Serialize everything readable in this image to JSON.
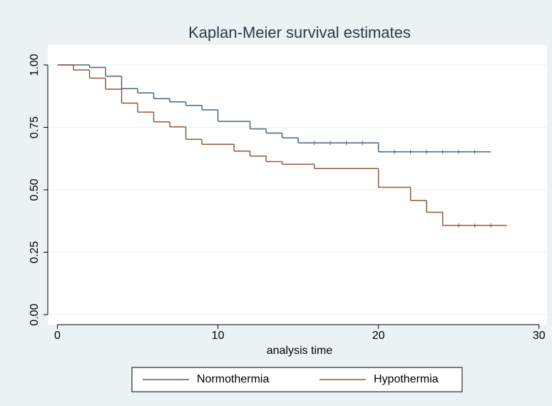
{
  "chart_data": {
    "type": "step",
    "title": "Kaplan-Meier survival estimates",
    "x_label": "analysis time",
    "xlim": [
      -0.6,
      30.5
    ],
    "xticks": [
      0,
      10,
      20,
      30
    ],
    "ylim": [
      -0.04,
      1.08
    ],
    "yticks": [
      {
        "value": 0,
        "label": "0.00"
      },
      {
        "value": 0.25,
        "label": "0.25"
      },
      {
        "value": 0.5,
        "label": "0.50"
      },
      {
        "value": 0.75,
        "label": "0.75"
      },
      {
        "value": 1,
        "label": "1.00"
      }
    ],
    "grid": true,
    "legend": "bottom",
    "series": [
      {
        "name": "Normothermia",
        "color": "#4a6478",
        "x": [
          0,
          2,
          3,
          4,
          5,
          6,
          7,
          8,
          9,
          10,
          12,
          13,
          14,
          15,
          20,
          27
        ],
        "values": [
          1,
          0.99,
          0.955,
          0.905,
          0.888,
          0.865,
          0.852,
          0.838,
          0.82,
          0.774,
          0.744,
          0.727,
          0.708,
          0.688,
          0.652,
          0.652
        ],
        "censored": [
          16,
          17,
          18,
          19,
          21,
          22,
          23,
          24,
          25,
          26
        ]
      },
      {
        "name": "Hypothermia",
        "color": "#96553b",
        "x": [
          0,
          1,
          2,
          3,
          4,
          5,
          6,
          7,
          8,
          9,
          11,
          12,
          13,
          14,
          16,
          20,
          22,
          23,
          24,
          28
        ],
        "values": [
          1,
          0.98,
          0.947,
          0.903,
          0.847,
          0.811,
          0.772,
          0.752,
          0.702,
          0.682,
          0.655,
          0.635,
          0.613,
          0.602,
          0.585,
          0.51,
          0.457,
          0.41,
          0.357,
          0.357
        ],
        "censored": [
          25,
          26,
          27
        ]
      }
    ]
  }
}
